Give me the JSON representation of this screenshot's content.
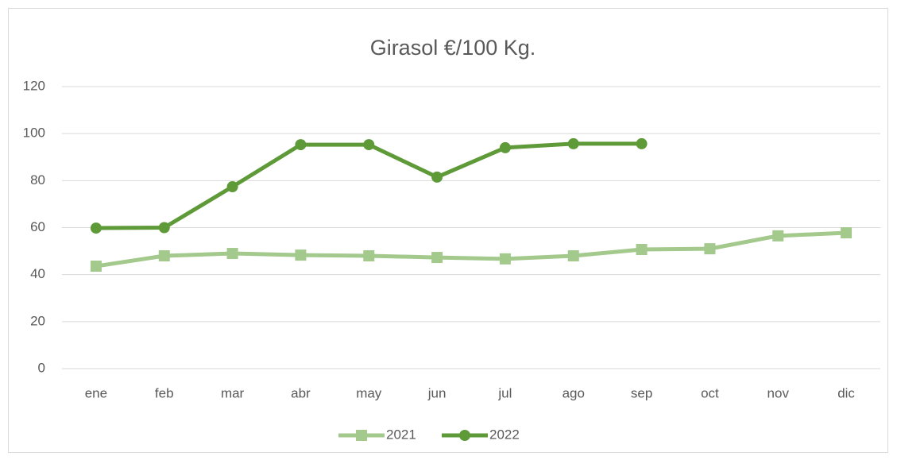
{
  "chart_data": {
    "type": "line",
    "title": "Girasol €/100 Kg.",
    "categories": [
      "ene",
      "feb",
      "mar",
      "abr",
      "may",
      "jun",
      "jul",
      "ago",
      "sep",
      "oct",
      "nov",
      "dic"
    ],
    "series": [
      {
        "name": "2021",
        "color": "#a3c98c",
        "marker": "square",
        "values": [
          43.6,
          48,
          49,
          48.3,
          48,
          47.3,
          46.7,
          48,
          50.7,
          51,
          56.5,
          57.8
        ]
      },
      {
        "name": "2022",
        "color": "#5e9a38",
        "marker": "circle",
        "values": [
          59.8,
          60,
          77.4,
          95.3,
          95.3,
          81.5,
          94,
          95.7,
          95.7,
          null,
          null,
          null
        ]
      }
    ],
    "ylim": [
      0,
      120
    ],
    "yticks": [
      0,
      20,
      40,
      60,
      80,
      100,
      120
    ],
    "grid": true,
    "legend": "bottom"
  }
}
